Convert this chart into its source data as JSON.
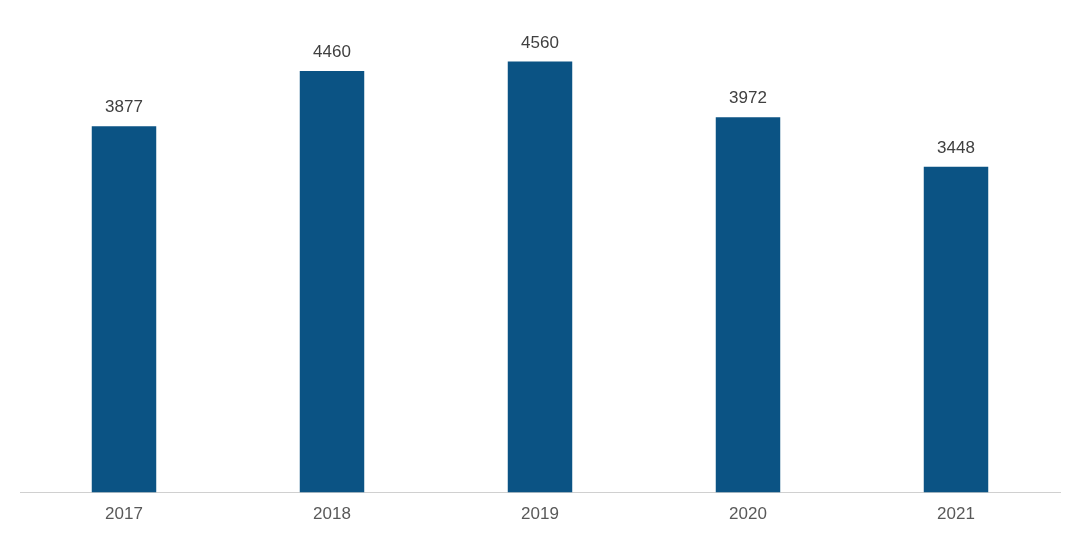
{
  "chart_data": {
    "type": "bar",
    "categories": [
      "2017",
      "2018",
      "2019",
      "2020",
      "2021"
    ],
    "values": [
      3877,
      4460,
      4560,
      3972,
      3448
    ],
    "color": "#0b5384",
    "data_labels": true,
    "grid": false,
    "legend": false
  }
}
